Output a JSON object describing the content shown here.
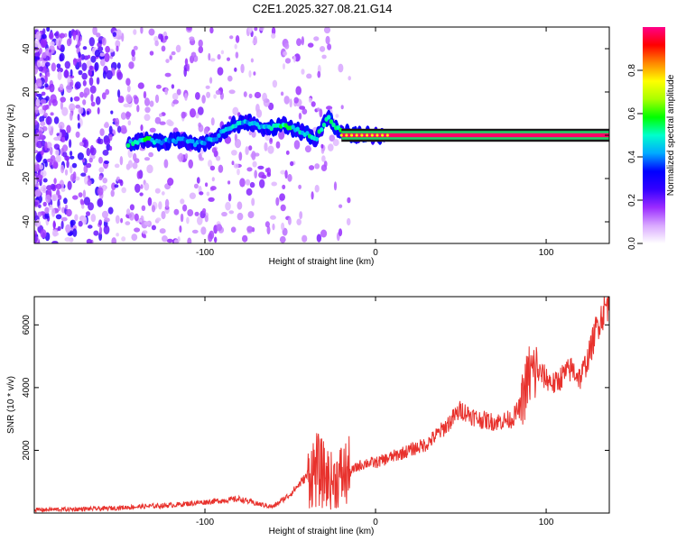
{
  "chart_data": [
    {
      "type": "scatter",
      "title": "C2E1.2025.327.08.21.G14",
      "xlabel": "Height of straight line (km)",
      "ylabel": "Frequency (Hz)",
      "xlim": [
        -200,
        137
      ],
      "ylim": [
        -50,
        50
      ],
      "x_ticks": [
        -100,
        0,
        100
      ],
      "y_ticks": [
        -40,
        -20,
        0,
        20,
        40
      ],
      "colorbar": {
        "label": "Normalized spectral amplitude",
        "range": [
          0,
          1
        ],
        "ticks": [
          0.0,
          0.2,
          0.4,
          0.6,
          0.8
        ],
        "tick_labels": [
          "0.0",
          "0.2",
          "0.4",
          "0.6",
          "0.8"
        ],
        "colors": [
          "#ffffff",
          "#d9a8ff",
          "#9a2bff",
          "#3300ff",
          "#0000ff",
          "#00aaff",
          "#00ffcc",
          "#00ff00",
          "#aaff00",
          "#ffff00",
          "#ff8800",
          "#ff0000",
          "#ff0088"
        ]
      },
      "ridge": [
        {
          "x": -145,
          "y": -4,
          "a": 0.55
        },
        {
          "x": -135,
          "y": -2,
          "a": 0.6
        },
        {
          "x": -125,
          "y": -3,
          "a": 0.5
        },
        {
          "x": -115,
          "y": -2,
          "a": 0.45
        },
        {
          "x": -105,
          "y": -4,
          "a": 0.5
        },
        {
          "x": -95,
          "y": -2,
          "a": 0.5
        },
        {
          "x": -85,
          "y": 4,
          "a": 0.55
        },
        {
          "x": -75,
          "y": 6,
          "a": 0.5
        },
        {
          "x": -65,
          "y": 3,
          "a": 0.5
        },
        {
          "x": -55,
          "y": 5,
          "a": 0.6
        },
        {
          "x": -45,
          "y": 2,
          "a": 0.55
        },
        {
          "x": -35,
          "y": -2,
          "a": 0.55
        },
        {
          "x": -28,
          "y": 8,
          "a": 0.6
        },
        {
          "x": -20,
          "y": 1,
          "a": 0.7
        },
        {
          "x": -10,
          "y": 0,
          "a": 0.85
        },
        {
          "x": 0,
          "y": 0,
          "a": 0.9
        },
        {
          "x": 10,
          "y": 0,
          "a": 0.95
        },
        {
          "x": 40,
          "y": 0,
          "a": 0.98
        },
        {
          "x": 80,
          "y": 0,
          "a": 0.98
        },
        {
          "x": 120,
          "y": 0,
          "a": 0.98
        },
        {
          "x": 137,
          "y": 0,
          "a": 0.98
        }
      ]
    },
    {
      "type": "line",
      "xlabel": "Height of straight line (km)",
      "ylabel": "SNR (10 * v/v)",
      "xlim": [
        -200,
        137
      ],
      "ylim": [
        0,
        6900
      ],
      "x_ticks": [
        -100,
        0,
        100
      ],
      "y_ticks": [
        2000,
        4000,
        6000
      ],
      "series": [
        {
          "color": "#e8322d",
          "x": [
            -200,
            -180,
            -160,
            -140,
            -120,
            -100,
            -90,
            -80,
            -70,
            -60,
            -50,
            -40,
            -35,
            -30,
            -25,
            -20,
            -15,
            -10,
            -5,
            0,
            10,
            20,
            30,
            40,
            50,
            60,
            70,
            80,
            85,
            90,
            95,
            100,
            105,
            110,
            115,
            120,
            125,
            130,
            137
          ],
          "y": [
            100,
            120,
            140,
            200,
            250,
            350,
            400,
            450,
            300,
            200,
            600,
            1200,
            1400,
            1200,
            1000,
            1200,
            1300,
            1500,
            1600,
            1600,
            1800,
            2000,
            2200,
            2700,
            3300,
            3000,
            2900,
            3000,
            3400,
            4400,
            4500,
            4300,
            4100,
            4400,
            4600,
            4300,
            5000,
            6000,
            6800
          ]
        }
      ]
    }
  ]
}
